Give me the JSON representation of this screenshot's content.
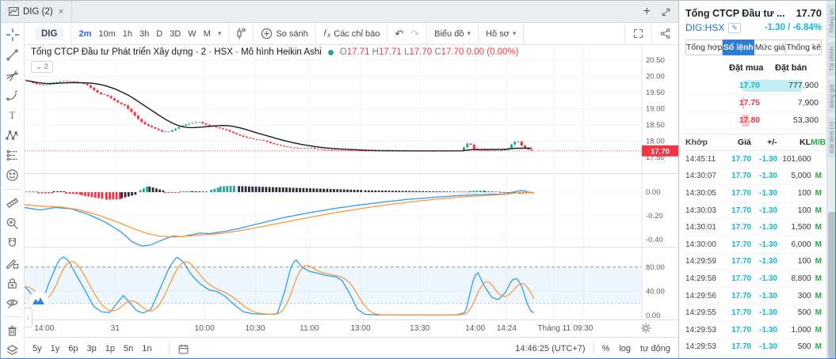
{
  "colors": {
    "up": "#26a69a",
    "down": "#f23645",
    "ma": "#16181e",
    "fast_line": "#2e9bf0",
    "slow_line": "#ff9838",
    "hist_black": "#2a2e39",
    "badge": "#f23645",
    "band_fill": "rgba(33,150,243,0.08)",
    "accent_blue": "#2962ff",
    "buy_teal": "#10b9cb",
    "sell_red": "#f0334d",
    "match_green": "#27a844",
    "active_tab_bg": "#2e7cd6"
  },
  "tabbar": {
    "tab_label": "DIG (2)",
    "close": "×",
    "add": "+"
  },
  "toolbar": {
    "symbol": "DIG",
    "intervals": [
      "2m",
      "10m",
      "1h",
      "3h",
      "D",
      "3D",
      "W",
      "M"
    ],
    "active_interval": "2m",
    "compare": "So sánh",
    "indicators": "Các chỉ báo",
    "fx": "ƒx",
    "chart_menu": "Biểu đồ",
    "profile_menu": "Hồ sơ"
  },
  "legend": {
    "title": "Tổng CTCP Đầu tư Phát triển Xây dựng · 2 · HSX · Mô hình Heikin Ashi",
    "o_label": "O",
    "o": "17.71",
    "h_label": "H",
    "h": "17.71",
    "l_label": "L",
    "l": "17.70",
    "c_label": "C",
    "c": "17.70",
    "change": "0.00 (0.00%)",
    "collapse_chip": "⌄ 2"
  },
  "chart_data": {
    "type": "multi-pane-financial",
    "x_ticks": [
      [
        0.032,
        "14:00"
      ],
      [
        0.147,
        "31"
      ],
      [
        0.292,
        "10:00"
      ],
      [
        0.374,
        "10:30"
      ],
      [
        0.462,
        "11:00"
      ],
      [
        0.545,
        "13:00"
      ],
      [
        0.641,
        "13:30"
      ],
      [
        0.731,
        "14:00"
      ],
      [
        0.782,
        "14:24"
      ],
      [
        0.859,
        "Tháng 11"
      ],
      [
        0.906,
        "09:30"
      ]
    ],
    "panes": [
      {
        "type": "candlestick",
        "style": "heikin-ashi",
        "y_ticks": [
          20.5,
          20.0,
          19.5,
          19.0,
          18.5,
          18.0,
          17.5
        ],
        "last_price": 17.7,
        "price_line": 17.7,
        "ma_window": 15,
        "close_path": [
          [
            0.0,
            19.88
          ],
          [
            0.01,
            19.85
          ],
          [
            0.02,
            19.76
          ],
          [
            0.035,
            19.72
          ],
          [
            0.05,
            19.8
          ],
          [
            0.065,
            19.86
          ],
          [
            0.08,
            19.84
          ],
          [
            0.095,
            19.8
          ],
          [
            0.105,
            19.72
          ],
          [
            0.115,
            19.58
          ],
          [
            0.125,
            19.45
          ],
          [
            0.135,
            19.42
          ],
          [
            0.145,
            19.3
          ],
          [
            0.155,
            19.18
          ],
          [
            0.165,
            19.1
          ],
          [
            0.175,
            18.92
          ],
          [
            0.185,
            18.72
          ],
          [
            0.195,
            18.55
          ],
          [
            0.205,
            18.46
          ],
          [
            0.215,
            18.38
          ],
          [
            0.225,
            18.3
          ],
          [
            0.235,
            18.28
          ],
          [
            0.245,
            18.36
          ],
          [
            0.255,
            18.45
          ],
          [
            0.265,
            18.52
          ],
          [
            0.275,
            18.56
          ],
          [
            0.285,
            18.6
          ],
          [
            0.295,
            18.52
          ],
          [
            0.305,
            18.46
          ],
          [
            0.315,
            18.42
          ],
          [
            0.33,
            18.34
          ],
          [
            0.345,
            18.22
          ],
          [
            0.36,
            18.12
          ],
          [
            0.375,
            18.06
          ],
          [
            0.39,
            18.02
          ],
          [
            0.405,
            17.92
          ],
          [
            0.42,
            17.85
          ],
          [
            0.435,
            17.8
          ],
          [
            0.45,
            17.78
          ],
          [
            0.465,
            17.8
          ],
          [
            0.475,
            17.76
          ],
          [
            0.49,
            17.73
          ],
          [
            0.51,
            17.72
          ],
          [
            0.54,
            17.71
          ],
          [
            0.57,
            17.7
          ],
          [
            0.65,
            17.7
          ],
          [
            0.7,
            17.7
          ],
          [
            0.712,
            17.71
          ],
          [
            0.718,
            17.88
          ],
          [
            0.724,
            17.97
          ],
          [
            0.73,
            17.78
          ],
          [
            0.736,
            17.72
          ],
          [
            0.75,
            17.71
          ],
          [
            0.77,
            17.71
          ],
          [
            0.785,
            17.74
          ],
          [
            0.795,
            17.95
          ],
          [
            0.802,
            18.02
          ],
          [
            0.808,
            17.88
          ],
          [
            0.815,
            17.78
          ],
          [
            0.822,
            17.73
          ],
          [
            0.826,
            17.71
          ]
        ]
      },
      {
        "type": "macd",
        "y_ticks": [
          0.0,
          -0.2,
          -0.4
        ],
        "line_fast": [
          [
            0.0,
            -0.13
          ],
          [
            0.025,
            -0.15
          ],
          [
            0.05,
            -0.13
          ],
          [
            0.075,
            -0.14
          ],
          [
            0.1,
            -0.18
          ],
          [
            0.13,
            -0.25
          ],
          [
            0.155,
            -0.33
          ],
          [
            0.175,
            -0.42
          ],
          [
            0.19,
            -0.455
          ],
          [
            0.205,
            -0.445
          ],
          [
            0.22,
            -0.41
          ],
          [
            0.24,
            -0.37
          ],
          [
            0.255,
            -0.375
          ],
          [
            0.27,
            -0.36
          ],
          [
            0.285,
            -0.345
          ],
          [
            0.3,
            -0.35
          ],
          [
            0.32,
            -0.335
          ],
          [
            0.345,
            -0.31
          ],
          [
            0.38,
            -0.265
          ],
          [
            0.42,
            -0.215
          ],
          [
            0.46,
            -0.175
          ],
          [
            0.5,
            -0.14
          ],
          [
            0.54,
            -0.11
          ],
          [
            0.58,
            -0.085
          ],
          [
            0.62,
            -0.062
          ],
          [
            0.66,
            -0.045
          ],
          [
            0.7,
            -0.03
          ],
          [
            0.73,
            -0.022
          ],
          [
            0.76,
            -0.018
          ],
          [
            0.78,
            -0.015
          ],
          [
            0.795,
            0.005
          ],
          [
            0.808,
            0.015
          ],
          [
            0.82,
            -0.002
          ],
          [
            0.826,
            -0.008
          ]
        ],
        "line_slow": [
          [
            0.0,
            -0.105
          ],
          [
            0.03,
            -0.12
          ],
          [
            0.06,
            -0.125
          ],
          [
            0.09,
            -0.15
          ],
          [
            0.12,
            -0.195
          ],
          [
            0.15,
            -0.25
          ],
          [
            0.175,
            -0.305
          ],
          [
            0.2,
            -0.35
          ],
          [
            0.22,
            -0.372
          ],
          [
            0.24,
            -0.378
          ],
          [
            0.26,
            -0.372
          ],
          [
            0.29,
            -0.36
          ],
          [
            0.32,
            -0.348
          ],
          [
            0.35,
            -0.325
          ],
          [
            0.39,
            -0.285
          ],
          [
            0.43,
            -0.245
          ],
          [
            0.47,
            -0.205
          ],
          [
            0.51,
            -0.168
          ],
          [
            0.55,
            -0.135
          ],
          [
            0.59,
            -0.105
          ],
          [
            0.63,
            -0.08
          ],
          [
            0.67,
            -0.058
          ],
          [
            0.71,
            -0.04
          ],
          [
            0.75,
            -0.028
          ],
          [
            0.78,
            -0.018
          ],
          [
            0.8,
            -0.005
          ],
          [
            0.815,
            0.002
          ],
          [
            0.826,
            -0.004
          ]
        ],
        "hist_segments": [
          [
            0.0,
            0.02,
            0.006,
            0.006,
            "teal"
          ],
          [
            0.02,
            0.045,
            -0.01,
            -0.01,
            "red"
          ],
          [
            0.045,
            0.065,
            0.008,
            0.008,
            "black"
          ],
          [
            0.065,
            0.09,
            -0.012,
            -0.018,
            "red"
          ],
          [
            0.09,
            0.13,
            -0.025,
            -0.06,
            "red"
          ],
          [
            0.13,
            0.155,
            -0.065,
            -0.06,
            "red"
          ],
          [
            0.155,
            0.185,
            -0.055,
            -0.015,
            "black"
          ],
          [
            0.185,
            0.2,
            0.01,
            0.05,
            "teal"
          ],
          [
            0.2,
            0.225,
            0.052,
            0.015,
            "black"
          ],
          [
            0.225,
            0.25,
            -0.008,
            -0.005,
            "red"
          ],
          [
            0.25,
            0.27,
            0.006,
            0.01,
            "teal"
          ],
          [
            0.27,
            0.3,
            0.008,
            0.004,
            "black"
          ],
          [
            0.3,
            0.315,
            0.015,
            0.04,
            "teal"
          ],
          [
            0.315,
            0.345,
            0.048,
            0.055,
            "teal"
          ],
          [
            0.345,
            0.55,
            0.052,
            0.018,
            "black"
          ],
          [
            0.55,
            0.7,
            0.016,
            0.004,
            "black"
          ],
          [
            0.7,
            0.72,
            0.004,
            0.003,
            "black"
          ],
          [
            0.72,
            0.745,
            0.01,
            0.014,
            "teal"
          ],
          [
            0.745,
            0.77,
            0.006,
            0.003,
            "black"
          ],
          [
            0.77,
            0.8,
            -0.006,
            -0.012,
            "red"
          ],
          [
            0.8,
            0.826,
            -0.014,
            -0.008,
            "red"
          ]
        ]
      },
      {
        "type": "stochastic",
        "y_ticks": [
          80.0,
          40.0,
          0.0
        ],
        "band": [
          20,
          80
        ],
        "k_line": [
          [
            0.0,
            48
          ],
          [
            0.008,
            40
          ],
          [
            0.018,
            22
          ],
          [
            0.028,
            20
          ],
          [
            0.04,
            55
          ],
          [
            0.055,
            90
          ],
          [
            0.063,
            97
          ],
          [
            0.072,
            90
          ],
          [
            0.085,
            65
          ],
          [
            0.1,
            38
          ],
          [
            0.112,
            15
          ],
          [
            0.125,
            6
          ],
          [
            0.138,
            5
          ],
          [
            0.15,
            20
          ],
          [
            0.16,
            33
          ],
          [
            0.17,
            22
          ],
          [
            0.182,
            8
          ],
          [
            0.192,
            4
          ],
          [
            0.205,
            10
          ],
          [
            0.22,
            45
          ],
          [
            0.235,
            80
          ],
          [
            0.247,
            97
          ],
          [
            0.258,
            88
          ],
          [
            0.27,
            68
          ],
          [
            0.285,
            52
          ],
          [
            0.3,
            42
          ],
          [
            0.312,
            40
          ],
          [
            0.325,
            32
          ],
          [
            0.34,
            18
          ],
          [
            0.355,
            6
          ],
          [
            0.37,
            3
          ],
          [
            0.39,
            2
          ],
          [
            0.41,
            3
          ],
          [
            0.422,
            40
          ],
          [
            0.432,
            80
          ],
          [
            0.44,
            93
          ],
          [
            0.45,
            80
          ],
          [
            0.462,
            73
          ],
          [
            0.475,
            70
          ],
          [
            0.49,
            66
          ],
          [
            0.505,
            64
          ],
          [
            0.515,
            58
          ],
          [
            0.528,
            35
          ],
          [
            0.54,
            10
          ],
          [
            0.552,
            2
          ],
          [
            0.57,
            1
          ],
          [
            0.65,
            1
          ],
          [
            0.7,
            1
          ],
          [
            0.715,
            5
          ],
          [
            0.728,
            60
          ],
          [
            0.735,
            72
          ],
          [
            0.745,
            50
          ],
          [
            0.758,
            30
          ],
          [
            0.768,
            26
          ],
          [
            0.78,
            38
          ],
          [
            0.79,
            58
          ],
          [
            0.798,
            62
          ],
          [
            0.806,
            50
          ],
          [
            0.815,
            20
          ],
          [
            0.822,
            6
          ],
          [
            0.826,
            5
          ]
        ]
      }
    ]
  },
  "bottom_bar": {
    "ranges": [
      "5y",
      "1y",
      "6p",
      "3p",
      "1p",
      "5n",
      "1n"
    ],
    "clock": "14:46:25 (UTC+7)",
    "scale_pct": "%",
    "scale_log": "log",
    "scale_auto": "tự động"
  },
  "quote": {
    "name": "Tổng CTCP Đầu tư ...",
    "price": "17.70",
    "symbol": "DIG:HSX",
    "change": "-1.30 / -6.84%",
    "tabs": [
      "Tổng hợp",
      "Sổ lệnh",
      "Mức giá",
      "Thống kê"
    ],
    "active_tab": "Sổ lệnh",
    "book_headers": [
      "Đặt mua",
      "Đặt bán"
    ],
    "book": [
      {
        "price": "17.70",
        "volume": "777,900",
        "side": "buy",
        "bar": 1.0
      },
      {
        "price": "17.75",
        "volume": "7,900",
        "side": "sell",
        "bar": 0.03
      },
      {
        "price": "17.80",
        "volume": "53,300",
        "side": "sell",
        "bar": 0.1
      }
    ],
    "trade_headers": [
      "Khớp",
      "Giá",
      "+/-",
      "KL",
      "M/B"
    ],
    "trades": [
      [
        "14:45:11",
        "17.70",
        "-1.30",
        "101,600",
        ""
      ],
      [
        "14:30:07",
        "17.70",
        "-1.30",
        "5,000",
        "M"
      ],
      [
        "14:30:05",
        "17.70",
        "-1.30",
        "100",
        "M"
      ],
      [
        "14:30:03",
        "17.70",
        "-1.30",
        "100",
        "M"
      ],
      [
        "14:30:01",
        "17.70",
        "-1.30",
        "1,500",
        "M"
      ],
      [
        "14:30:00",
        "17.70",
        "-1.30",
        "6,000",
        "M"
      ],
      [
        "14:29:59",
        "17.70",
        "-1.30",
        "100",
        "M"
      ],
      [
        "14:29:58",
        "17.70",
        "-1.30",
        "8,800",
        "M"
      ],
      [
        "14:29:56",
        "17.70",
        "-1.30",
        "300",
        "M"
      ],
      [
        "14:29:55",
        "17.70",
        "-1.30",
        "500",
        "M"
      ],
      [
        "14:29:53",
        "17.70",
        "-1.30",
        "1,000",
        "M"
      ],
      [
        "14:29:53",
        "17.70",
        "-1.30",
        "500",
        "M"
      ]
    ]
  },
  "side_strip": {
    "labels": [
      "Thông tin",
      "Tài chính",
      "Bảng giá",
      "Đặt lệnh (+)"
    ]
  },
  "left_tools": [
    "crosshair",
    "trend-line",
    "gann-fib",
    "brush",
    "text",
    "xabcd-pattern",
    "forecast",
    "emoji",
    "measure",
    "zoom-in",
    "magnet",
    "drawing-lock",
    "lock",
    "hide-drawings",
    "remove-drawings",
    "object-tree"
  ]
}
